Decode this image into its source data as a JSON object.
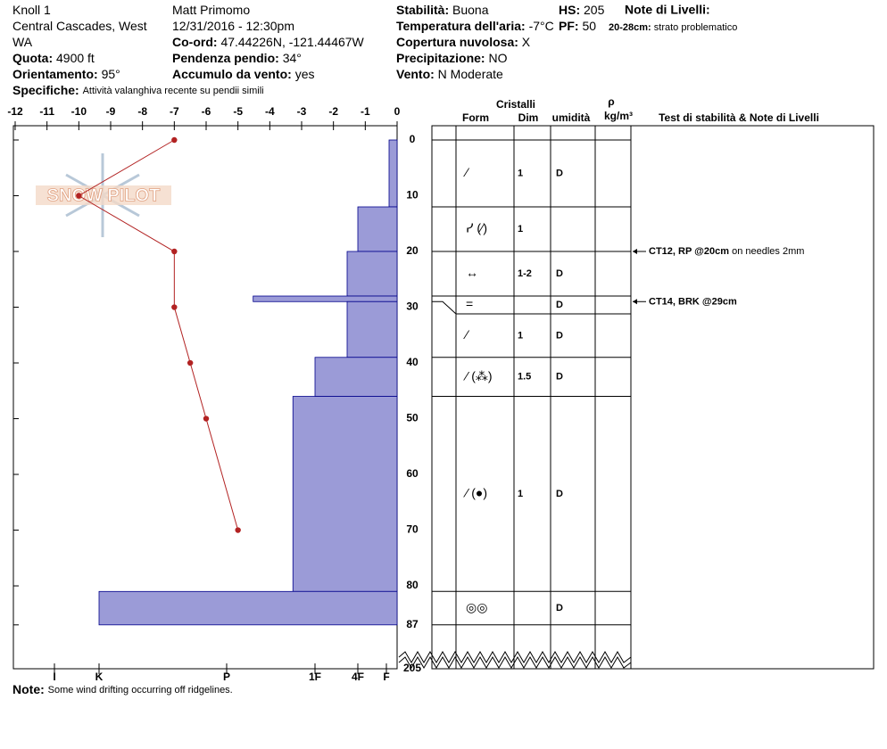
{
  "header": {
    "col1": [
      {
        "value": "Knoll 1"
      },
      {
        "value": "Central Cascades, West"
      },
      {
        "value": "WA"
      },
      {
        "label": "Quota:",
        "value": "4900 ft"
      },
      {
        "label": "Orientamento:",
        "value": "95°"
      }
    ],
    "col2": [
      {
        "value": "Matt Primomo"
      },
      {
        "value": "12/31/2016 - 12:30pm"
      },
      {
        "label": "Co-ord:",
        "value": "47.44226N, -121.44467W"
      },
      {
        "label": "Pendenza pendio:",
        "value": "34°"
      },
      {
        "label": "Accumulo da vento:",
        "value": "yes"
      }
    ],
    "col3": [
      {
        "label": "Stabilità:",
        "value": "Buona"
      },
      {
        "label": "Temperatura dell'aria:",
        "value": "-7°C"
      },
      {
        "label": "Copertura nuvolosa:",
        "value": "X"
      },
      {
        "label": "Precipitazione:",
        "value": "NO"
      },
      {
        "label": "Vento:",
        "value": "N Moderate"
      }
    ],
    "specifiche": {
      "label": "Specifiche:",
      "value": "Attività valanghiva recente su pendii simili"
    },
    "hs": {
      "label": "HS:",
      "value": 205
    },
    "pf": {
      "label": "PF:",
      "value": 50
    },
    "layer_notes": {
      "title": "Note di Livelli:",
      "items": [
        {
          "label": "20-28cm:",
          "value": "strato problematico"
        }
      ]
    }
  },
  "logo": "SNOW PILOT",
  "note": {
    "label": "Note:",
    "value": "Some wind drifting occurring off ridgelines."
  },
  "chart_data": {
    "type": "snow-profile",
    "xlim": [
      -12,
      0
    ],
    "xticks": [
      -12,
      -11,
      -10,
      -9,
      -8,
      -7,
      -6,
      -5,
      -4,
      -3,
      -2,
      -1,
      0
    ],
    "ylim": [
      0,
      87
    ],
    "yticks": [
      0,
      10,
      20,
      30,
      40,
      50,
      60,
      70,
      80,
      87
    ],
    "hardness_ticks": [
      {
        "value": 1,
        "label": "F"
      },
      {
        "value": 2,
        "label": "4F"
      },
      {
        "value": 3,
        "label": "1F"
      },
      {
        "value": 4,
        "label": "P"
      },
      {
        "value": 5,
        "label": "K"
      },
      {
        "value": 6,
        "label": "I"
      }
    ],
    "temperature": {
      "color": "#b22222",
      "depth": [
        0,
        10,
        20,
        30,
        40,
        50,
        70
      ],
      "values": [
        -7,
        -10,
        -7,
        -7,
        -6.5,
        -6,
        -5
      ]
    },
    "layer_color": "#9b9bd7",
    "columns": {
      "group": "Cristalli",
      "form": "Form",
      "size": "Dim",
      "moisture": "umidità",
      "density": "ρ",
      "density_unit": "kg/m³",
      "tests": "Test di stabilità & Note di Livelli"
    },
    "layers": [
      {
        "top": 0,
        "bottom": 12,
        "hardness": 0.75,
        "form": "⁄",
        "size": "1",
        "moisture": "D"
      },
      {
        "top": 12,
        "bottom": 20,
        "hardness": 2.0,
        "form": "ᓯ (⁄)",
        "size": "1"
      },
      {
        "top": 20,
        "bottom": 28,
        "hardness": 2.25,
        "form": "↔",
        "size": "1-2",
        "moisture": "D"
      },
      {
        "top": 28,
        "bottom": 29,
        "hardness": 3.7,
        "form": "=",
        "moisture": "D"
      },
      {
        "top": 29,
        "bottom": 39,
        "hardness": 2.25,
        "form": "⁄",
        "size": "1",
        "moisture": "D"
      },
      {
        "top": 39,
        "bottom": 46,
        "hardness": 3.0,
        "form": "⁄ (⁂)",
        "size": "1.5",
        "moisture": "D"
      },
      {
        "top": 46,
        "bottom": 81,
        "hardness": 3.25,
        "form": "⁄ (●)",
        "size": "1",
        "moisture": "D"
      },
      {
        "top": 81,
        "bottom": 87,
        "hardness": 5.0,
        "form": "◎◎",
        "moisture": "D"
      }
    ],
    "tests": [
      {
        "depth": 20,
        "label": "CT12, RP @20cm",
        "comment": "on needles 2mm"
      },
      {
        "depth": 29,
        "label": "CT14, BRK @29cm"
      }
    ]
  }
}
